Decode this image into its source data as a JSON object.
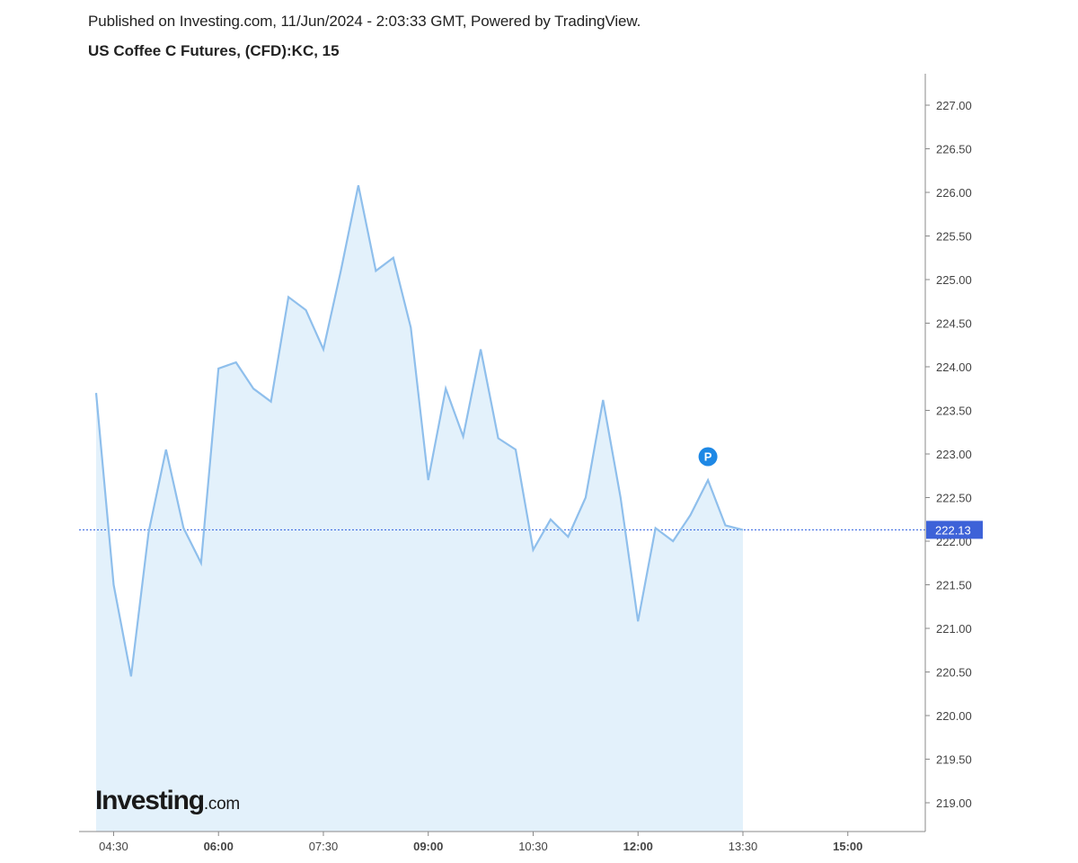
{
  "header": {
    "published": "Published on Investing.com, 11/Jun/2024 - 2:03:33 GMT, Powered by TradingView.",
    "title": "US Coffee C Futures, (CFD):KC, 15"
  },
  "logo": {
    "main": "Investing",
    "suffix": ".com"
  },
  "chart_data": {
    "type": "area",
    "x": [
      "04:15",
      "04:30",
      "04:45",
      "05:00",
      "05:15",
      "05:30",
      "05:45",
      "06:00",
      "06:15",
      "06:30",
      "06:45",
      "07:00",
      "07:15",
      "07:30",
      "07:45",
      "08:00",
      "08:15",
      "08:30",
      "08:45",
      "09:00",
      "09:15",
      "09:30",
      "09:45",
      "10:00",
      "10:15",
      "10:30",
      "10:45",
      "11:00",
      "11:15",
      "11:30",
      "11:45",
      "12:00",
      "12:15",
      "12:30",
      "12:45",
      "13:00",
      "13:15",
      "13:30"
    ],
    "series": [
      {
        "values": [
          223.7,
          221.5,
          220.45,
          222.1,
          223.05,
          222.15,
          221.75,
          223.98,
          224.05,
          223.75,
          223.6,
          224.8,
          224.65,
          224.2,
          225.1,
          226.08,
          225.1,
          225.25,
          224.45,
          222.7,
          223.75,
          223.2,
          224.2,
          223.18,
          223.05,
          221.9,
          222.25,
          222.05,
          222.5,
          223.62,
          222.5,
          221.08,
          222.15,
          222.0,
          222.3,
          222.7,
          222.18,
          222.13
        ]
      }
    ],
    "x_ticks": [
      "04:30",
      "06:00",
      "07:30",
      "09:00",
      "10:30",
      "12:00",
      "13:30",
      "15:00"
    ],
    "x_ticks_bold": [
      "06:00",
      "09:00",
      "12:00",
      "15:00"
    ],
    "y_ticks": [
      "219.00",
      "219.50",
      "220.00",
      "220.50",
      "221.00",
      "221.50",
      "222.00",
      "222.50",
      "223.00",
      "223.50",
      "224.00",
      "224.50",
      "225.00",
      "225.50",
      "226.00",
      "226.50",
      "227.00"
    ],
    "ylim": [
      218.67,
      227.33
    ],
    "x_range": [
      "04:15",
      "15:30"
    ],
    "last_value": 222.13,
    "last_value_label": "222.13",
    "marker": {
      "x": "13:00",
      "y": 223.0,
      "label": "P"
    },
    "grid": false,
    "colors": {
      "line": "#8fbfec",
      "fill": "#e3f1fb",
      "last_line": "#2d5fe0",
      "last_label_bg": "#3d62d8",
      "marker": "#1e88e5",
      "axis": "#888888"
    }
  }
}
